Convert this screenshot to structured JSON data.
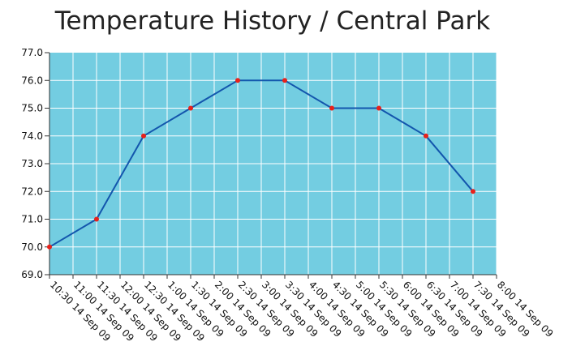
{
  "chart_data": {
    "type": "line",
    "title": "Temperature History / Central Park",
    "xlabel": "",
    "ylabel": "",
    "ylim": [
      69.0,
      77.0
    ],
    "yticks": [
      "69.0",
      "70.0",
      "71.0",
      "72.0",
      "73.0",
      "74.0",
      "75.0",
      "76.0",
      "77.0"
    ],
    "x_ticks": [
      "10:30 14 Sep 09",
      "11:00 14 Sep 09",
      "11:30 14 Sep 09",
      "12:00 14 Sep 09",
      "12:30 14 Sep 09",
      "1:00 14 Sep 09",
      "1:30 14 Sep 09",
      "2:00 14 Sep 09",
      "2:30 14 Sep 09",
      "3:00 14 Sep 09",
      "3:30 14 Sep 09",
      "4:00 14 Sep 09",
      "4:30 14 Sep 09",
      "5:00 14 Sep 09",
      "5:30 14 Sep 09",
      "6:00 14 Sep 09",
      "6:30 14 Sep 09",
      "7:00 14 Sep 09",
      "7:30 14 Sep 09",
      "8:00 14 Sep 09"
    ],
    "series": [
      {
        "points": [
          {
            "x": "10:30 14 Sep 09",
            "y": 70
          },
          {
            "x": "11:30 14 Sep 09",
            "y": 71
          },
          {
            "x": "12:30 14 Sep 09",
            "y": 74
          },
          {
            "x": "1:30 14 Sep 09",
            "y": 75
          },
          {
            "x": "2:30 14 Sep 09",
            "y": 76
          },
          {
            "x": "3:30 14 Sep 09",
            "y": 76
          },
          {
            "x": "4:30 14 Sep 09",
            "y": 75
          },
          {
            "x": "5:30 14 Sep 09",
            "y": 75
          },
          {
            "x": "6:30 14 Sep 09",
            "y": 74
          },
          {
            "x": "7:30 14 Sep 09",
            "y": 72
          }
        ]
      }
    ],
    "grid": true,
    "colors": {
      "plot_background": "#73cde1",
      "grid": "#ffffff",
      "line": "#1356ad",
      "marker": "#e8211b"
    }
  }
}
